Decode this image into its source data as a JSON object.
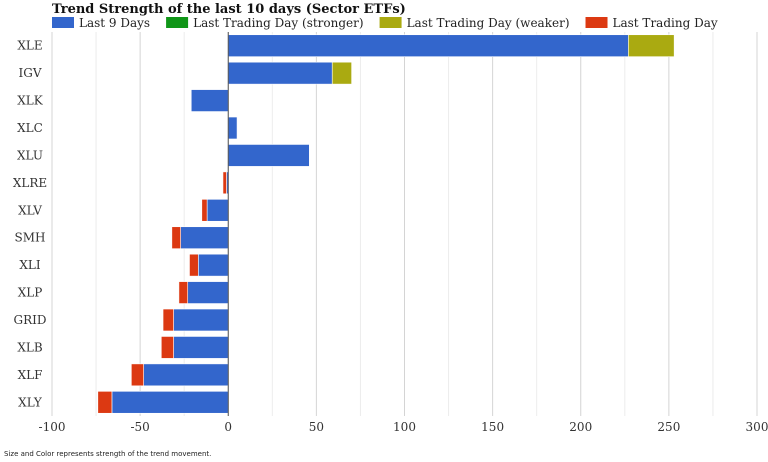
{
  "chart_data": {
    "type": "bar",
    "orientation": "horizontal",
    "stacked": true,
    "title": "Trend Strength of the last 10 days (Sector ETFs)",
    "legend": {
      "placement": "top-left",
      "entries": [
        {
          "label": "Last 9 Days",
          "color": "#3366cc"
        },
        {
          "label": "Last Trading Day (stronger)",
          "color": "#109618"
        },
        {
          "label": "Last Trading Day (weaker)",
          "color": "#aaaa11"
        },
        {
          "label": "Last Trading Day",
          "color": "#dc3912"
        }
      ]
    },
    "categories": [
      "XLE",
      "IGV",
      "XLK",
      "XLC",
      "XLU",
      "XLRE",
      "XLV",
      "SMH",
      "XLI",
      "XLP",
      "GRID",
      "XLB",
      "XLF",
      "XLY"
    ],
    "series": [
      {
        "name": "Last 9 Days",
        "color": "#3366cc",
        "values": [
          227,
          59,
          -21,
          5,
          46,
          -1,
          -12,
          -27,
          -17,
          -23,
          -31,
          -31,
          -48,
          -66
        ]
      },
      {
        "name": "Last Trading Day (weaker)",
        "color": "#aaaa11",
        "values": [
          26,
          11,
          0,
          0,
          0,
          0,
          0,
          0,
          0,
          0,
          0,
          0,
          0,
          0
        ]
      },
      {
        "name": "Last Trading Day",
        "color": "#dc3912",
        "values": [
          0,
          0,
          0,
          0,
          0,
          -2,
          -3,
          -5,
          -5,
          -5,
          -6,
          -7,
          -7,
          -8
        ]
      }
    ],
    "xlim": [
      -100,
      300
    ],
    "xticks": [
      -100,
      -50,
      0,
      50,
      100,
      150,
      200,
      250,
      300
    ],
    "grid": true
  },
  "footnote": "Size and Color represents strength of the trend movement."
}
